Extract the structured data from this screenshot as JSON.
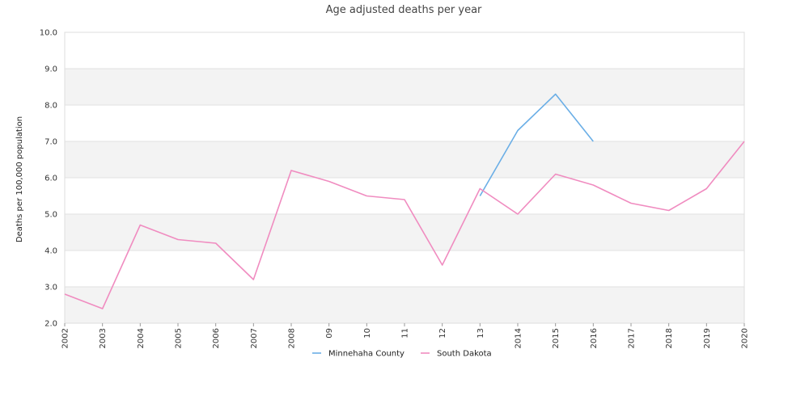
{
  "chart_data": {
    "type": "line",
    "title": "Age adjusted deaths per year",
    "ylabel": "Deaths per 100,000 population",
    "xlabel": "",
    "ylim": [
      2.0,
      10.0
    ],
    "yticks": [
      "2.0",
      "3.0",
      "4.0",
      "5.0",
      "6.0",
      "7.0",
      "8.0",
      "9.0",
      "10.0"
    ],
    "categories": [
      "2002",
      "2003",
      "2004",
      "2005",
      "2006",
      "2007",
      "2008",
      "09",
      "10",
      "11",
      "12",
      "13",
      "2014",
      "2015",
      "2016",
      "2017",
      "2018",
      "2019",
      "2020"
    ],
    "grid": "horizontal alternating bands",
    "legend_position": "bottom-center",
    "series": [
      {
        "name": "Minnehaha County",
        "color": "#6aaee6",
        "values": [
          null,
          null,
          null,
          null,
          null,
          null,
          null,
          null,
          null,
          null,
          null,
          5.5,
          7.3,
          8.3,
          7.0,
          null,
          null,
          null,
          null
        ]
      },
      {
        "name": "South Dakota",
        "color": "#f08cc0",
        "values": [
          2.8,
          2.4,
          4.7,
          4.3,
          4.2,
          3.2,
          6.2,
          5.9,
          5.5,
          5.4,
          3.6,
          5.7,
          5.0,
          6.1,
          5.8,
          5.3,
          5.1,
          5.7,
          7.0
        ]
      }
    ]
  }
}
